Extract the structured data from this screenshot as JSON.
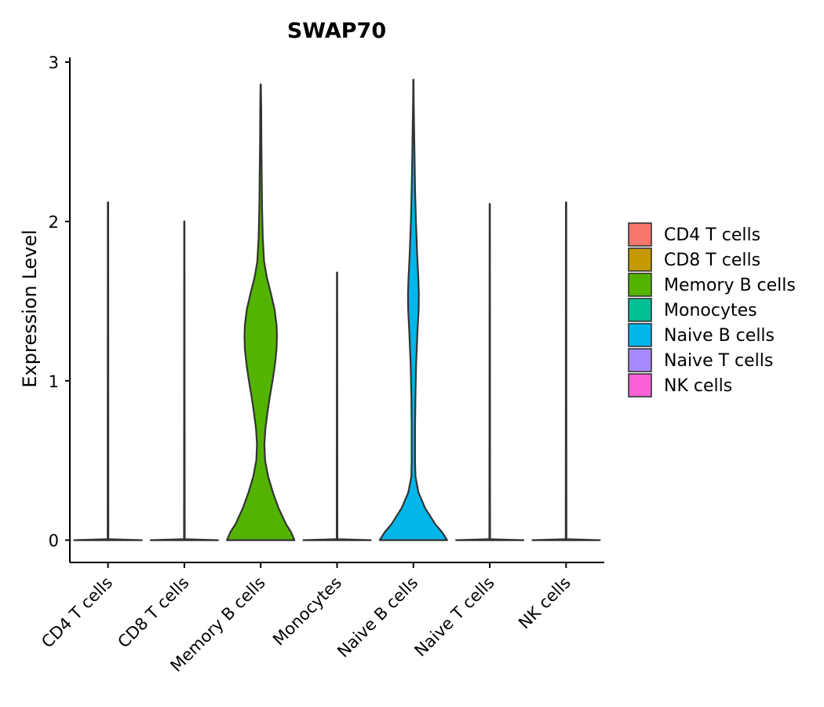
{
  "chart_data": {
    "type": "violin",
    "title": "SWAP70",
    "xlabel": "",
    "ylabel": "Expression Level",
    "ylim": [
      -0.14,
      3.03
    ],
    "yticks": [
      0,
      1,
      2,
      3
    ],
    "categories": [
      "CD4 T cells",
      "CD8 T cells",
      "Memory B cells",
      "Monocytes",
      "Naive B cells",
      "Naive T cells",
      "NK cells"
    ],
    "colors": [
      "#F8766D",
      "#C49A00",
      "#53B400",
      "#00C094",
      "#00B6EB",
      "#A58AFF",
      "#FB61D7"
    ],
    "max_values": [
      2.12,
      2.0,
      2.86,
      1.68,
      2.89,
      2.11,
      2.12
    ],
    "density_profiles": [
      [
        [
          0,
          1
        ],
        [
          0.006,
          0.01
        ],
        [
          2.12,
          0.005
        ]
      ],
      [
        [
          0,
          1
        ],
        [
          0.006,
          0.01
        ],
        [
          2.0,
          0.005
        ]
      ],
      [
        [
          0,
          1
        ],
        [
          0.05,
          0.9
        ],
        [
          0.1,
          0.75
        ],
        [
          0.2,
          0.53
        ],
        [
          0.3,
          0.36
        ],
        [
          0.4,
          0.22
        ],
        [
          0.5,
          0.13
        ],
        [
          0.6,
          0.11
        ],
        [
          0.7,
          0.14
        ],
        [
          0.8,
          0.2
        ],
        [
          0.9,
          0.27
        ],
        [
          1.0,
          0.35
        ],
        [
          1.1,
          0.42
        ],
        [
          1.2,
          0.47
        ],
        [
          1.28,
          0.48
        ],
        [
          1.35,
          0.47
        ],
        [
          1.45,
          0.41
        ],
        [
          1.55,
          0.3
        ],
        [
          1.65,
          0.18
        ],
        [
          1.75,
          0.1
        ],
        [
          1.9,
          0.06
        ],
        [
          2.1,
          0.04
        ],
        [
          2.3,
          0.03
        ],
        [
          2.5,
          0.02
        ],
        [
          2.7,
          0.015
        ],
        [
          2.86,
          0.005
        ]
      ],
      [
        [
          0,
          1
        ],
        [
          0.006,
          0.01
        ],
        [
          1.68,
          0.005
        ]
      ],
      [
        [
          0,
          1
        ],
        [
          0.05,
          0.85
        ],
        [
          0.1,
          0.65
        ],
        [
          0.2,
          0.35
        ],
        [
          0.3,
          0.15
        ],
        [
          0.4,
          0.06
        ],
        [
          0.5,
          0.05
        ],
        [
          0.7,
          0.05
        ],
        [
          0.9,
          0.06
        ],
        [
          1.1,
          0.08
        ],
        [
          1.3,
          0.12
        ],
        [
          1.45,
          0.155
        ],
        [
          1.55,
          0.16
        ],
        [
          1.65,
          0.145
        ],
        [
          1.8,
          0.11
        ],
        [
          2.0,
          0.075
        ],
        [
          2.2,
          0.05
        ],
        [
          2.4,
          0.035
        ],
        [
          2.6,
          0.02
        ],
        [
          2.75,
          0.01
        ],
        [
          2.89,
          0.005
        ]
      ],
      [
        [
          0,
          1
        ],
        [
          0.006,
          0.01
        ],
        [
          2.11,
          0.005
        ]
      ],
      [
        [
          0,
          1
        ],
        [
          0.006,
          0.01
        ],
        [
          2.12,
          0.005
        ]
      ]
    ],
    "legend": {
      "position": "right",
      "entries": [
        "CD4 T cells",
        "CD8 T cells",
        "Memory B cells",
        "Monocytes",
        "Naive B cells",
        "Naive T cells",
        "NK cells"
      ]
    }
  }
}
